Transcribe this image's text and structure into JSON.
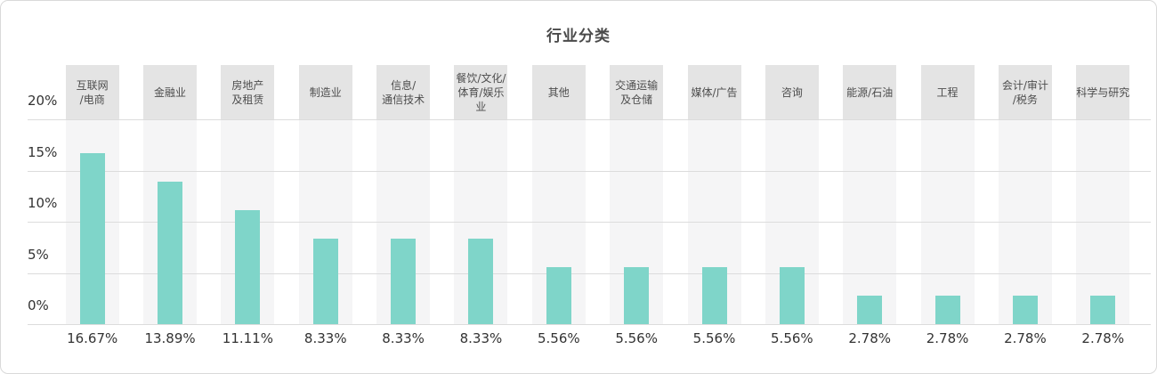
{
  "title": "行业分类",
  "colors": {
    "bar": "#7fd5c9",
    "header_box": "#e4e4e4",
    "column_stripe": "#f5f5f6",
    "gridline": "#dcdcdc",
    "title_text": "#4a4a4a",
    "axis_text": "#333333",
    "category_text": "#4d4d4d",
    "card_border": "#d9d9d9"
  },
  "y_axis": {
    "tick_labels": [
      "20%",
      "15%",
      "10%",
      "5%",
      "0%"
    ],
    "tick_values": [
      20,
      15,
      10,
      5,
      0
    ]
  },
  "chart_data": {
    "type": "bar",
    "title": "行业分类",
    "categories": [
      "互联网/电商",
      "金融业",
      "房地产及租赁",
      "制造业",
      "信息/通信技术",
      "餐饮/文化/体育/娱乐业",
      "其他",
      "交通运输及仓储",
      "媒体/广告",
      "咨询",
      "能源/石油",
      "工程",
      "会计/审计/税务",
      "科学与研究"
    ],
    "category_lines": [
      [
        "互联网",
        "/电商"
      ],
      [
        "金融业"
      ],
      [
        "房地产",
        "及租赁"
      ],
      [
        "制造业"
      ],
      [
        "信息/",
        "通信技术"
      ],
      [
        "餐饮/文化/",
        "体育/娱乐业"
      ],
      [
        "其他"
      ],
      [
        "交通运输",
        "及仓储"
      ],
      [
        "媒体/广告"
      ],
      [
        "咨询"
      ],
      [
        "能源/石油"
      ],
      [
        "工程"
      ],
      [
        "会计/审计",
        "/税务"
      ],
      [
        "科学与研究"
      ]
    ],
    "values": [
      16.67,
      13.89,
      11.11,
      8.33,
      8.33,
      8.33,
      5.56,
      5.56,
      5.56,
      5.56,
      2.78,
      2.78,
      2.78,
      2.78
    ],
    "value_labels": [
      "16.67%",
      "13.89%",
      "11.11%",
      "8.33%",
      "8.33%",
      "8.33%",
      "5.56%",
      "5.56%",
      "5.56%",
      "5.56%",
      "2.78%",
      "2.78%",
      "2.78%",
      "2.78%"
    ],
    "xlabel": "",
    "ylabel": "",
    "ylim": [
      0,
      20
    ],
    "grid": true,
    "legend": false
  }
}
